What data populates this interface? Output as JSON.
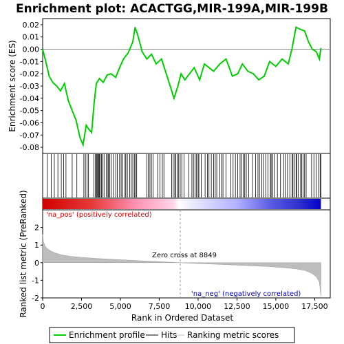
{
  "chart_data": [
    {
      "type": "line",
      "title": "Enrichment plot: ACACTGG,MIR-199A,MIR-199B",
      "ylabel": "Enrichment score (ES)",
      "xlim": [
        0,
        18500
      ],
      "ylim": [
        -0.085,
        0.025
      ],
      "yticks": [
        "0.02",
        "0.01",
        "0.00",
        "-0.01",
        "-0.02",
        "-0.03",
        "-0.04",
        "-0.05",
        "-0.06",
        "-0.07",
        "-0.08"
      ],
      "series": [
        {
          "color": "#00cc00",
          "x": [
            0,
            200,
            420,
            650,
            900,
            1150,
            1400,
            1650,
            1900,
            2150,
            2400,
            2600,
            2800,
            2950,
            3150,
            3300,
            3450,
            3650,
            3900,
            4150,
            4400,
            4700,
            4950,
            5200,
            5500,
            5800,
            5950,
            6150,
            6400,
            6700,
            7000,
            7300,
            7650,
            7900,
            8200,
            8450,
            8700,
            8900,
            9150,
            9450,
            9750,
            10100,
            10400,
            10700,
            11000,
            11400,
            11800,
            12200,
            12550,
            12850,
            13200,
            13550,
            13900,
            14250,
            14600,
            15000,
            15400,
            15800,
            16050,
            16300,
            16600,
            16850,
            17100,
            17350,
            17600,
            17800,
            17900
          ],
          "y": [
            0.0,
            -0.01,
            -0.022,
            -0.027,
            -0.03,
            -0.034,
            -0.028,
            -0.042,
            -0.05,
            -0.058,
            -0.072,
            -0.078,
            -0.062,
            -0.065,
            -0.068,
            -0.045,
            -0.028,
            -0.024,
            -0.027,
            -0.021,
            -0.02,
            -0.023,
            -0.015,
            -0.008,
            -0.003,
            0.006,
            0.018,
            0.01,
            -0.002,
            -0.008,
            -0.004,
            -0.012,
            -0.008,
            -0.018,
            -0.03,
            -0.04,
            -0.03,
            -0.02,
            -0.025,
            -0.02,
            -0.015,
            -0.025,
            -0.012,
            -0.015,
            -0.018,
            -0.012,
            -0.008,
            -0.022,
            -0.02,
            -0.012,
            -0.018,
            -0.02,
            -0.025,
            -0.022,
            -0.01,
            -0.014,
            -0.008,
            -0.012,
            0.001,
            0.018,
            0.016,
            0.015,
            0.006,
            0.0,
            -0.002,
            -0.008,
            0.001
          ]
        }
      ]
    },
    {
      "type": "hits",
      "x": [
        300,
        550,
        750,
        980,
        1200,
        1350,
        1500,
        1900,
        2200,
        2650,
        2750,
        2850,
        2950,
        3300,
        3400,
        3450,
        3500,
        3550,
        3600,
        3650,
        3700,
        3780,
        3850,
        3950,
        4100,
        4200,
        4250,
        4300,
        4400,
        4550,
        4700,
        4800,
        4950,
        5050,
        5150,
        5300,
        5350,
        5450,
        5600,
        5700,
        5800,
        5900,
        6000,
        6050,
        6700,
        6800,
        6900,
        7000,
        7100,
        7400,
        7550,
        7700,
        7800,
        8300,
        8400,
        8500,
        8550,
        8650,
        8750,
        8850,
        8950,
        9100,
        9400,
        9600,
        9700,
        9800,
        9900,
        10000,
        10050,
        10200,
        10450,
        10600,
        10700,
        10850,
        11000,
        11100,
        11200,
        11400,
        11500,
        11600,
        11800,
        12100,
        12250,
        12400,
        12550,
        12700,
        12800,
        12900,
        13000,
        13100,
        13250,
        13500,
        13700,
        13850,
        13950,
        14100,
        14200,
        14350,
        14500,
        14650,
        14700,
        14800,
        14900,
        15100,
        15300,
        15500,
        15600,
        15750,
        15900,
        16050,
        16100,
        16200,
        16300,
        16350,
        16450,
        16600,
        16650,
        16750,
        16850,
        16950,
        17300,
        17450,
        17600,
        17750,
        17850,
        17900
      ]
    },
    {
      "type": "area",
      "ylabel": "Ranked list metric (PreRanked)",
      "xlabel": "Rank in Ordered Dataset",
      "xlim": [
        0,
        18500
      ],
      "ylim": [
        -2,
        3
      ],
      "yticks": [
        "2",
        "1",
        "0",
        "-1",
        "-2"
      ],
      "xticks": [
        "0",
        "2,500",
        "5,000",
        "7,500",
        "10,000",
        "12,500",
        "15,000",
        "17,500"
      ],
      "x": [
        0,
        50,
        150,
        300,
        500,
        800,
        1200,
        1800,
        2500,
        3500,
        4500,
        6000,
        7500,
        8849,
        10000,
        11500,
        13000,
        14500,
        15500,
        16300,
        16900,
        17300,
        17600,
        17800,
        17900
      ],
      "y": [
        1.6,
        1.2,
        0.95,
        0.8,
        0.68,
        0.55,
        0.45,
        0.36,
        0.3,
        0.24,
        0.19,
        0.12,
        0.06,
        0.0,
        -0.05,
        -0.1,
        -0.16,
        -0.22,
        -0.28,
        -0.35,
        -0.45,
        -0.6,
        -0.8,
        -1.1,
        -1.9
      ],
      "annotations": {
        "zero_cross": "Zero cross at 8849",
        "pos": "'na_pos' (positively correlated)",
        "neg": "'na_neg' (negatively correlated)"
      }
    }
  ],
  "legend": [
    {
      "label": "Enrichment profile",
      "color": "#00cc00"
    },
    {
      "label": "Hits",
      "color": "#000000"
    },
    {
      "label": "Ranking metric scores",
      "color": "#c0c0c0"
    }
  ],
  "colors": {
    "pos": "#d00000",
    "neg": "#0000cc",
    "zero": "#ffffff"
  }
}
